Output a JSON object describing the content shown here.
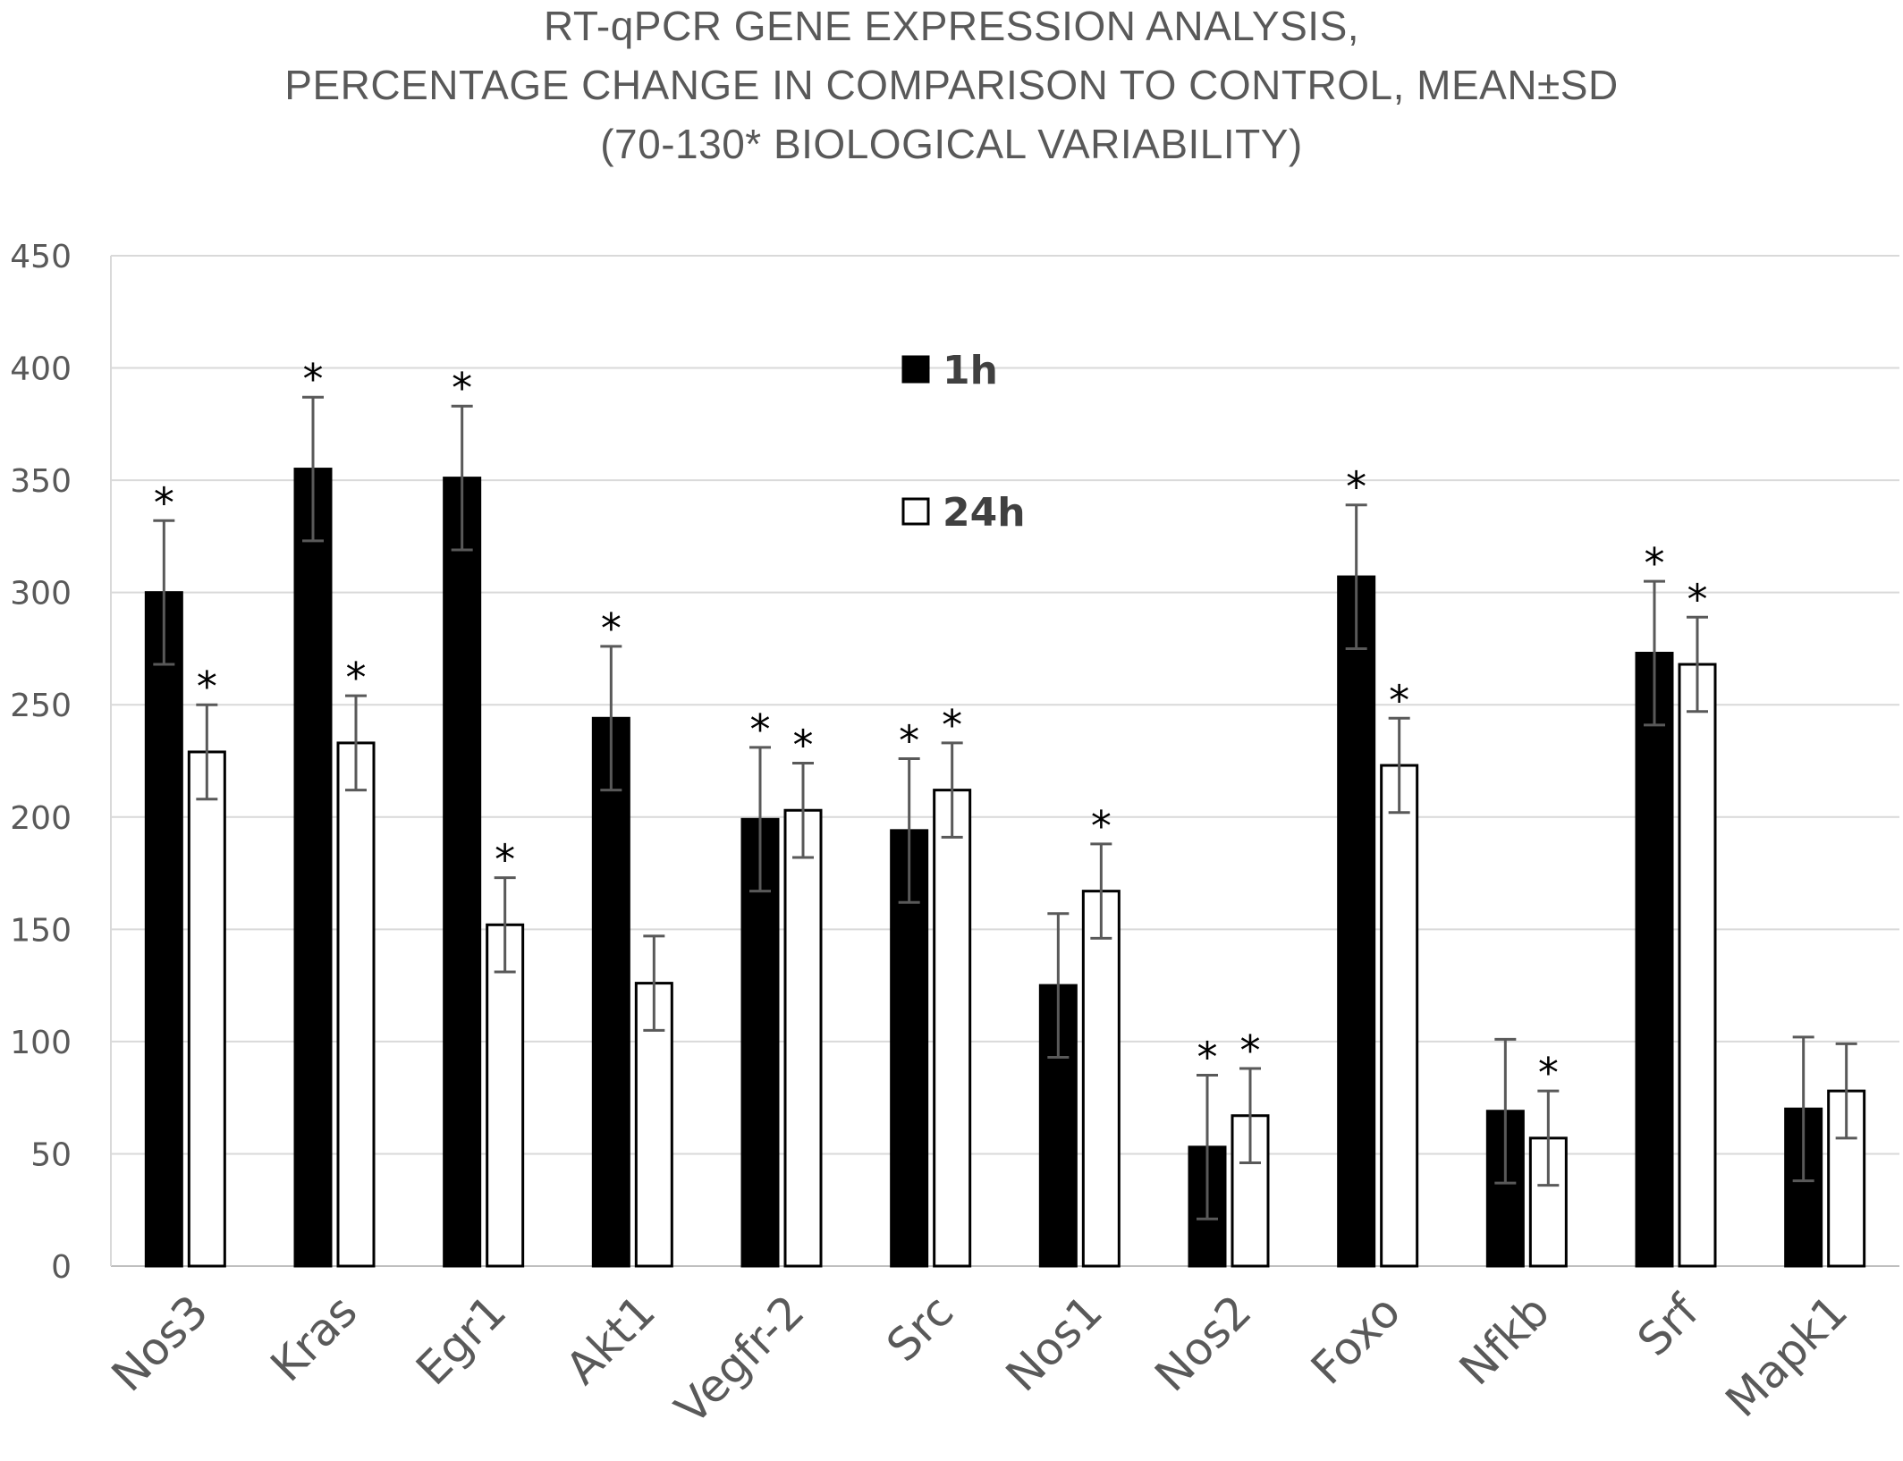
{
  "chart_data": {
    "type": "bar",
    "title": [
      "RT-qPCR GENE EXPRESSION ANALYSIS,",
      "PERCENTAGE CHANGE IN COMPARISON TO CONTROL, MEAN±SD",
      "(70-130* BIOLOGICAL VARIABILITY)"
    ],
    "categories": [
      "Nos3",
      "Kras",
      "Egr1",
      "Akt1",
      "Vegfr-2",
      "Src",
      "Nos1",
      "Nos2",
      "Foxo",
      "Nfkb",
      "Srf",
      "Mapk1"
    ],
    "series": [
      {
        "name": "1h",
        "color": "#000000",
        "values": [
          300,
          355,
          351,
          244,
          199,
          194,
          125,
          53,
          307,
          69,
          273,
          70
        ],
        "sd": [
          32,
          32,
          32,
          32,
          32,
          32,
          32,
          32,
          32,
          32,
          32,
          32
        ],
        "significant": [
          true,
          true,
          true,
          true,
          true,
          true,
          false,
          true,
          true,
          false,
          true,
          false
        ]
      },
      {
        "name": "24h",
        "color": "#ffffff",
        "values": [
          229,
          233,
          152,
          126,
          203,
          212,
          167,
          67,
          223,
          57,
          268,
          78
        ],
        "sd": [
          21,
          21,
          21,
          21,
          21,
          21,
          21,
          21,
          21,
          21,
          21,
          21
        ],
        "significant": [
          true,
          true,
          true,
          false,
          true,
          true,
          true,
          true,
          true,
          true,
          true,
          false
        ]
      }
    ],
    "significance_marker": "*",
    "yticks": [
      0,
      50,
      100,
      150,
      200,
      250,
      300,
      350,
      400,
      450
    ],
    "ylim": [
      0,
      450
    ],
    "grid": true,
    "legend_position": "top-center",
    "xlabel": "",
    "ylabel": ""
  }
}
